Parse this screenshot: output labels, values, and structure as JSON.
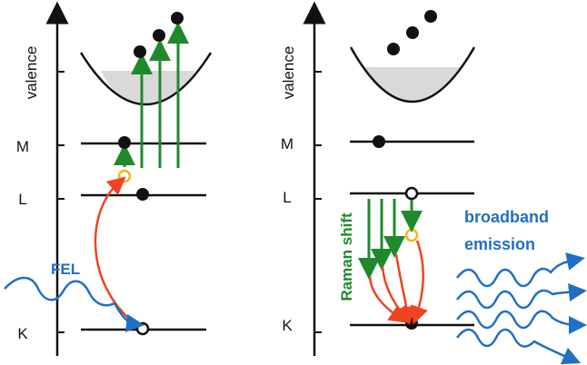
{
  "labels": {
    "valence": "valence",
    "m": "M",
    "l": "L",
    "k": "K",
    "fel": "FEL",
    "raman_shift": "Raman shift",
    "broadband_line1": "broadband",
    "broadband_line2": "emission"
  },
  "colors": {
    "ink": "#111111",
    "fill_band": "#d9d9d9",
    "green": "#1f8a2c",
    "red": "#f0431f",
    "yellow": "#f4b41a",
    "blue": "#1f6fc4"
  }
}
